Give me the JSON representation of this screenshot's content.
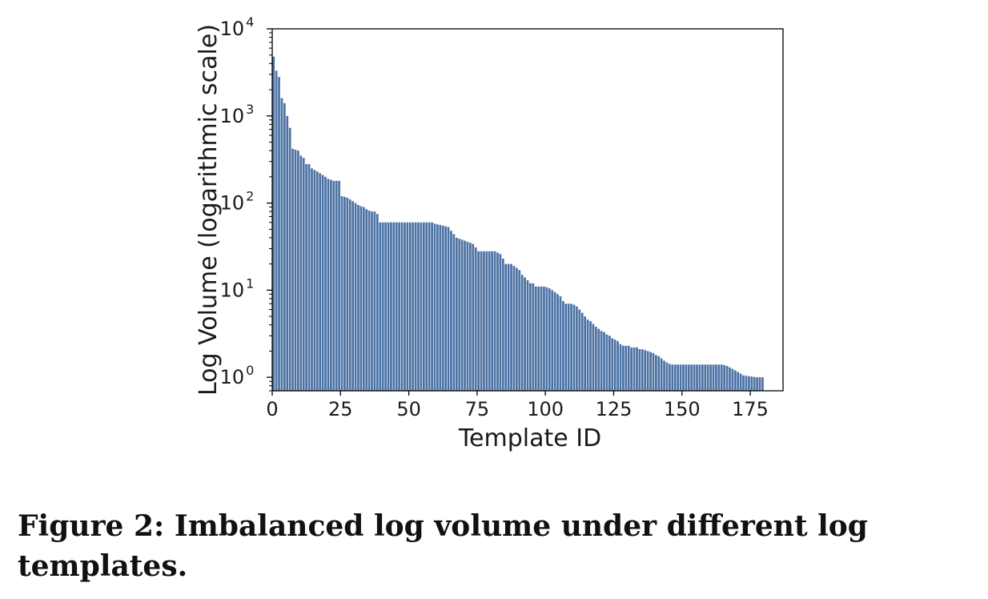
{
  "chart_data": {
    "type": "bar",
    "x_scale": "linear",
    "y_scale": "log",
    "xlabel": "Template ID",
    "ylabel": "Log Volume (logarithmic scale)",
    "xlim": [
      0,
      187
    ],
    "ylim": [
      0.7,
      10000
    ],
    "x_ticks": [
      0,
      25,
      50,
      75,
      100,
      125,
      150,
      175
    ],
    "y_ticks": [
      {
        "value": 1,
        "base": "10",
        "exp": "0"
      },
      {
        "value": 10,
        "base": "10",
        "exp": "1"
      },
      {
        "value": 100,
        "base": "10",
        "exp": "2"
      },
      {
        "value": 1000,
        "base": "10",
        "exp": "3"
      },
      {
        "value": 10000,
        "base": "10",
        "exp": "4"
      }
    ],
    "grid": false,
    "bar_color": "#4c72a4",
    "x": [
      0,
      1,
      2,
      3,
      4,
      5,
      6,
      7,
      8,
      9,
      10,
      11,
      12,
      13,
      14,
      15,
      16,
      17,
      18,
      19,
      20,
      21,
      22,
      23,
      24,
      25,
      26,
      27,
      28,
      29,
      30,
      31,
      32,
      33,
      34,
      35,
      36,
      37,
      38,
      39,
      40,
      41,
      42,
      43,
      44,
      45,
      46,
      47,
      48,
      49,
      50,
      51,
      52,
      53,
      54,
      55,
      56,
      57,
      58,
      59,
      60,
      61,
      62,
      63,
      64,
      65,
      66,
      67,
      68,
      69,
      70,
      71,
      72,
      73,
      74,
      75,
      76,
      77,
      78,
      79,
      80,
      81,
      82,
      83,
      84,
      85,
      86,
      87,
      88,
      89,
      90,
      91,
      92,
      93,
      94,
      95,
      96,
      97,
      98,
      99,
      100,
      101,
      102,
      103,
      104,
      105,
      106,
      107,
      108,
      109,
      110,
      111,
      112,
      113,
      114,
      115,
      116,
      117,
      118,
      119,
      120,
      121,
      122,
      123,
      124,
      125,
      126,
      127,
      128,
      129,
      130,
      131,
      132,
      133,
      134,
      135,
      136,
      137,
      138,
      139,
      140,
      141,
      142,
      143,
      144,
      145,
      146,
      147,
      148,
      149,
      150,
      151,
      152,
      153,
      154,
      155,
      156,
      157,
      158,
      159,
      160,
      161,
      162,
      163,
      164,
      165,
      166,
      167,
      168,
      169,
      170,
      171,
      172,
      173,
      174,
      175,
      176,
      177,
      178,
      179
    ],
    "values": [
      4800,
      3300,
      2800,
      1600,
      1400,
      1000,
      730,
      420,
      410,
      400,
      350,
      330,
      280,
      280,
      250,
      240,
      230,
      220,
      210,
      200,
      190,
      185,
      180,
      180,
      180,
      120,
      118,
      115,
      110,
      105,
      100,
      95,
      92,
      90,
      85,
      82,
      80,
      80,
      75,
      60,
      60,
      60,
      60,
      60,
      60,
      60,
      60,
      60,
      60,
      60,
      60,
      60,
      60,
      60,
      60,
      60,
      60,
      60,
      60,
      58,
      57,
      56,
      55,
      54,
      53,
      48,
      44,
      40,
      39,
      38,
      37,
      36,
      35,
      34,
      31,
      28,
      28,
      28,
      28,
      28,
      28,
      28,
      27,
      26,
      23,
      20,
      20,
      20,
      19,
      18,
      17,
      15,
      14,
      13,
      12,
      12,
      11,
      11,
      11,
      11,
      10.8,
      10.5,
      10,
      9.5,
      9,
      8.5,
      7.5,
      7,
      7,
      7,
      6.8,
      6.5,
      6,
      5.5,
      5,
      4.6,
      4.4,
      4.1,
      3.8,
      3.6,
      3.4,
      3.3,
      3.1,
      3.0,
      2.8,
      2.7,
      2.6,
      2.4,
      2.3,
      2.3,
      2.3,
      2.2,
      2.2,
      2.2,
      2.1,
      2.1,
      2.05,
      2.0,
      1.95,
      1.9,
      1.8,
      1.75,
      1.65,
      1.55,
      1.48,
      1.42,
      1.4,
      1.4,
      1.4,
      1.4,
      1.4,
      1.4,
      1.4,
      1.4,
      1.4,
      1.4,
      1.4,
      1.4,
      1.4,
      1.4,
      1.4,
      1.4,
      1.4,
      1.4,
      1.4,
      1.38,
      1.35,
      1.3,
      1.25,
      1.2,
      1.15,
      1.1,
      1.05,
      1.04,
      1.03,
      1.02,
      1.01,
      1.0,
      1.0,
      1.0
    ]
  },
  "caption": "Figure 2: Imbalanced log volume under different log templates."
}
